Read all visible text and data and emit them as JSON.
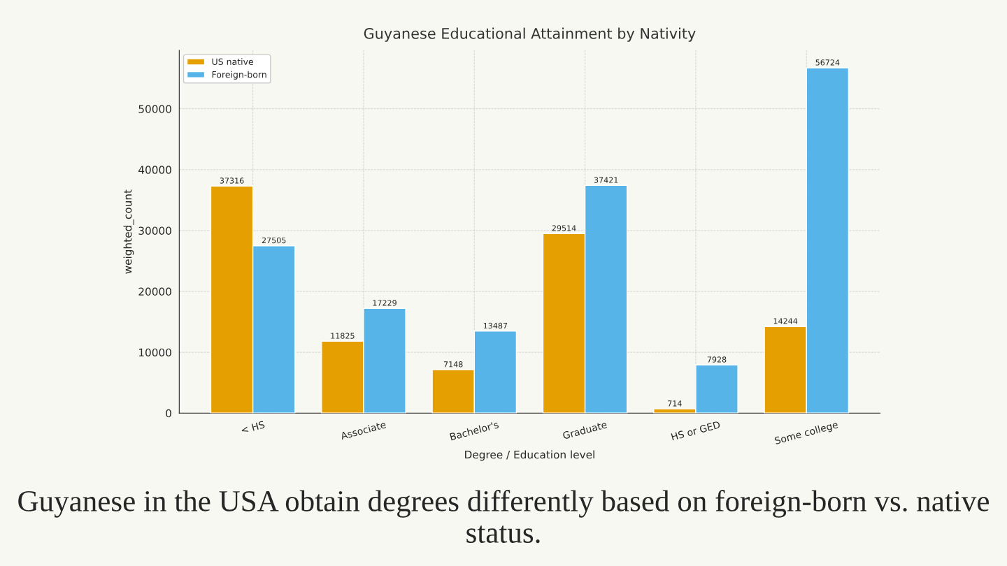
{
  "chart_data": {
    "type": "bar",
    "title": "Guyanese Educational Attainment by Nativity",
    "xlabel": "Degree / Education level",
    "ylabel": "weighted_count",
    "categories": [
      "< HS",
      "Associate",
      "Bachelor's",
      "Graduate",
      "HS or GED",
      "Some college"
    ],
    "series": [
      {
        "name": "US native",
        "color": "#e69f00",
        "values": [
          37316,
          11825,
          7148,
          29514,
          714,
          14244
        ]
      },
      {
        "name": "Foreign-born",
        "color": "#56b4e9",
        "values": [
          27505,
          17229,
          13487,
          37421,
          7928,
          56724
        ]
      }
    ],
    "ylim": [
      0,
      59600
    ],
    "yticks": [
      0,
      10000,
      20000,
      30000,
      40000,
      50000
    ],
    "data_labels": true,
    "grid": true,
    "legend": "top left",
    "annotations": [
      "Guyanese in the USA obtain degrees differently based on foreign-born vs. native status."
    ]
  }
}
